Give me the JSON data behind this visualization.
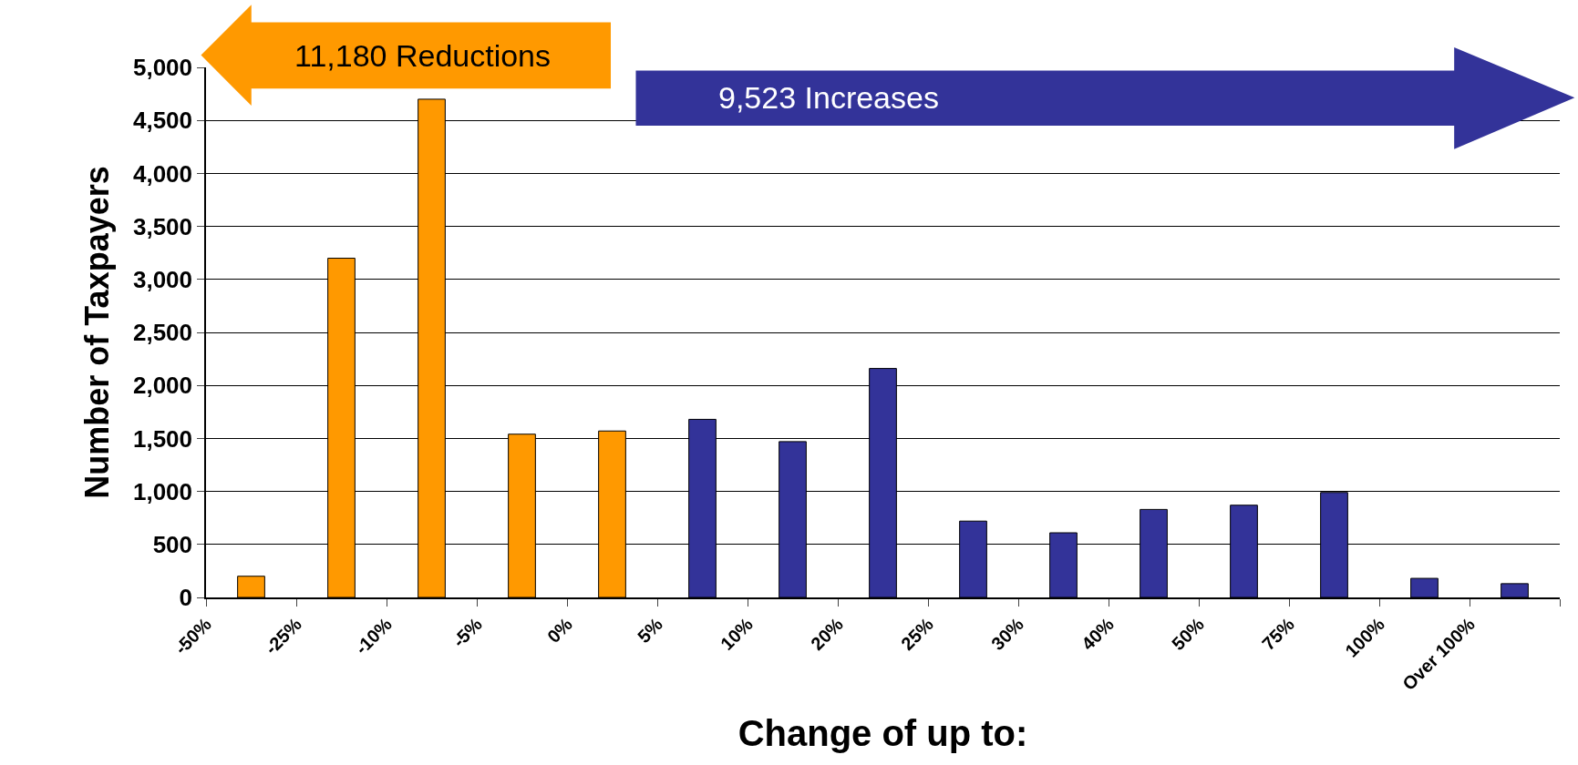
{
  "chart_data": {
    "type": "bar",
    "xlabel": "Change of up to:",
    "ylabel": "Number of Taxpayers",
    "categories": [
      "-50%",
      "-25%",
      "-10%",
      "-5%",
      "0%",
      "5%",
      "10%",
      "20%",
      "25%",
      "30%",
      "40%",
      "50%",
      "75%",
      "100%",
      "Over 100%"
    ],
    "values": [
      200,
      3200,
      4700,
      1540,
      1570,
      1680,
      1470,
      2160,
      720,
      610,
      830,
      870,
      990,
      180,
      130
    ],
    "colors": [
      "#ff9900",
      "#ff9900",
      "#ff9900",
      "#ff9900",
      "#ff9900",
      "#333399",
      "#333399",
      "#333399",
      "#333399",
      "#333399",
      "#333399",
      "#333399",
      "#333399",
      "#333399",
      "#333399"
    ],
    "ylim": [
      0,
      5000
    ],
    "yticks": [
      0,
      500,
      {
        "value": 1000,
        "label": "1,000"
      },
      {
        "value": 1500,
        "label": "1,500"
      },
      {
        "value": 2000,
        "label": "2,000"
      },
      {
        "value": 2500,
        "label": "2,500"
      },
      {
        "value": 3000,
        "label": "3,000"
      },
      {
        "value": 3500,
        "label": "3,500"
      },
      {
        "value": 4000,
        "label": "4,000"
      },
      {
        "value": 4500,
        "label": "4,500"
      },
      {
        "value": 5000,
        "label": "5,000"
      }
    ],
    "grid": "y",
    "annotations": [
      "11,180 Reductions",
      "9,523 Increases"
    ]
  }
}
